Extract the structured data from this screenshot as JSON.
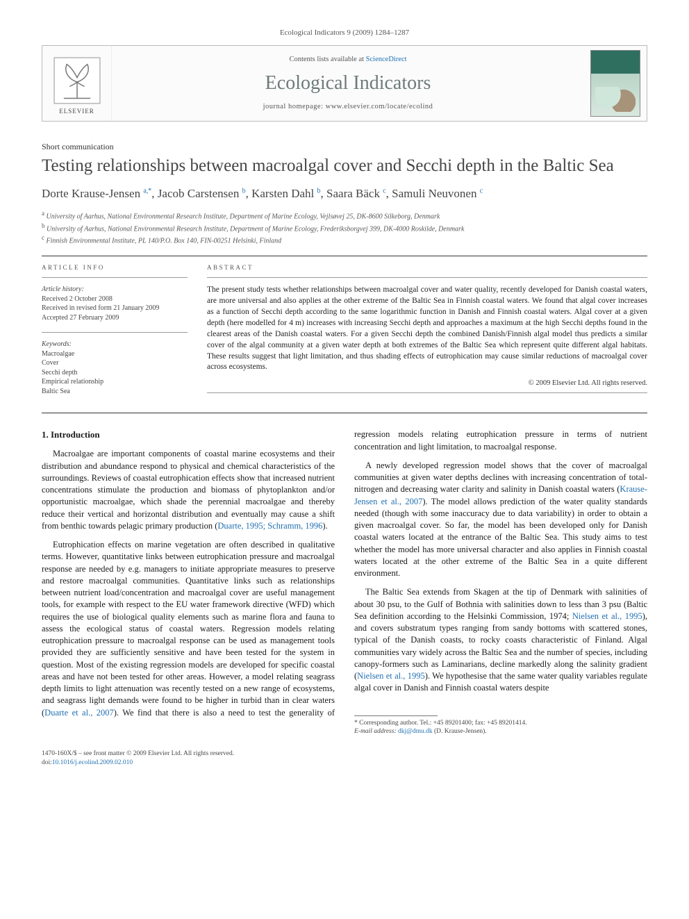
{
  "running_head": "Ecological Indicators 9 (2009) 1284–1287",
  "masthead": {
    "contents_prefix": "Contents lists available at ",
    "contents_link": "ScienceDirect",
    "journal": "Ecological Indicators",
    "homepage_prefix": "journal homepage: ",
    "homepage": "www.elsevier.com/locate/ecolind",
    "publisher": "ELSEVIER"
  },
  "article_type": "Short communication",
  "title": "Testing relationships between macroalgal cover and Secchi depth in the Baltic Sea",
  "authors_html": "Dorte Krause-Jensen <sup>a,*</sup>, Jacob Carstensen <sup>b</sup>, Karsten Dahl <sup>b</sup>, Saara Bäck <sup>c</sup>, Samuli Neuvonen <sup>c</sup>",
  "affiliations": [
    {
      "sup": "a",
      "text": "University of Aarhus, National Environmental Research Institute, Department of Marine Ecology, Vejlsøvej 25, DK-8600 Silkeborg, Denmark"
    },
    {
      "sup": "b",
      "text": "University of Aarhus, National Environmental Research Institute, Department of Marine Ecology, Frederiksborgvej 399, DK-4000 Roskilde, Denmark"
    },
    {
      "sup": "c",
      "text": "Finnish Environmental Institute, PL 140/P.O. Box 140, FIN-00251 Helsinki, Finland"
    }
  ],
  "article_info": {
    "heading": "ARTICLE INFO",
    "history_hd": "Article history:",
    "received": "Received 2 October 2008",
    "revised": "Received in revised form 21 January 2009",
    "accepted": "Accepted 27 February 2009",
    "keywords_hd": "Keywords:",
    "keywords": [
      "Macroalgae",
      "Cover",
      "Secchi depth",
      "Empirical relationship",
      "Baltic Sea"
    ]
  },
  "abstract": {
    "heading": "ABSTRACT",
    "text": "The present study tests whether relationships between macroalgal cover and water quality, recently developed for Danish coastal waters, are more universal and also applies at the other extreme of the Baltic Sea in Finnish coastal waters. We found that algal cover increases as a function of Secchi depth according to the same logarithmic function in Danish and Finnish coastal waters. Algal cover at a given depth (here modelled for 4 m) increases with increasing Secchi depth and approaches a maximum at the high Secchi depths found in the clearest areas of the Danish coastal waters. For a given Secchi depth the combined Danish/Finnish algal model thus predicts a similar cover of the algal community at a given water depth at both extremes of the Baltic Sea which represent quite different algal habitats. These results suggest that light limitation, and thus shading effects of eutrophication may cause similar reductions of macroalgal cover across ecosystems.",
    "copyright": "© 2009 Elsevier Ltd. All rights reserved."
  },
  "section1": {
    "heading": "1.  Introduction",
    "p1": "Macroalgae are important components of coastal marine ecosystems and their distribution and abundance respond to physical and chemical characteristics of the surroundings. Reviews of coastal eutrophication effects show that increased nutrient concentrations stimulate the production and biomass of phytoplankton and/or opportunistic macroalgae, which shade the perennial macroalgae and thereby reduce their vertical and horizontal distribution and eventually may cause a shift from benthic towards pelagic primary production (",
    "p1_ref": "Duarte, 1995; Schramm, 1996",
    "p1_tail": ").",
    "p2a": "Eutrophication effects on marine vegetation are often described in qualitative terms. However, quantitative links between eutrophication pressure and macroalgal response are needed by e.g. managers to initiate appropriate measures to preserve and restore macroalgal communities. Quantitative links such as relationships between nutrient load/concentration and macroalgal cover are useful management tools, for example with respect to the EU water framework directive (WFD) which requires the use of biological quality elements such as marine flora and fauna to assess the ecological status of coastal waters. Regression models relating eutrophication pressure to macroalgal response can be used as management tools provided they are sufficiently sensitive and have been tested for the system in question. Most of the existing regression models are developed for specific coastal areas and have ",
    "p2b": "not been tested for other areas. However, a model relating seagrass depth limits to light attenuation was recently tested on a new range of ecosystems, and seagrass light demands were found to be higher in turbid than in clear waters (",
    "p2_ref": "Duarte et al., 2007",
    "p2_tail": "). We find that there is also a need to test the generality of regression models relating eutrophication pressure in terms of nutrient concentration and light limitation, to macroalgal response.",
    "p3a": "A newly developed regression model shows that the cover of macroalgal communities at given water depths declines with increasing concentration of total-nitrogen and decreasing water clarity and salinity in Danish coastal waters (",
    "p3_ref": "Krause-Jensen et al., 2007",
    "p3b": "). The model allows prediction of the water quality standards needed (though with some inaccuracy due to data variability) in order to obtain a given macroalgal cover. So far, the model has been developed only for Danish coastal waters located at the entrance of the Baltic Sea. This study aims to test whether the model has more universal character and also applies in Finnish coastal waters located at the other extreme of the Baltic Sea in a quite different environment.",
    "p4a": "The Baltic Sea extends from Skagen at the tip of Denmark with salinities of about 30 psu, to the Gulf of Bothnia with salinities down to less than 3 psu (Baltic Sea definition according to the Helsinki Commission, 1974; ",
    "p4_ref1": "Nielsen et al., 1995",
    "p4b": "), and covers substratum types ranging from sandy bottoms with scattered stones, typical of the Danish coasts, to rocky coasts characteristic of Finland. Algal communities vary widely across the Baltic Sea and the number of species, including canopy-formers such as Laminarians, decline markedly along the salinity gradient (",
    "p4_ref2": "Nielsen et al., 1995",
    "p4c": "). We hypothesise that the same water quality variables regulate algal cover in Danish and Finnish coastal waters despite"
  },
  "footnote": {
    "corr": "* Corresponding author. Tel.: +45 89201400; fax: +45 89201414.",
    "email_label": "E-mail address: ",
    "email": "dkj@dmu.dk",
    "email_tail": " (D. Krause-Jensen)."
  },
  "footer": {
    "left_line1": "1470-160X/$ – see front matter © 2009 Elsevier Ltd. All rights reserved.",
    "left_line2_prefix": "doi:",
    "left_line2_link": "10.1016/j.ecolind.2009.02.010"
  },
  "colors": {
    "link": "#1f6fb2",
    "journal_gray": "#6e7a7a",
    "rule": "#333333",
    "text": "#1a1a1a"
  }
}
